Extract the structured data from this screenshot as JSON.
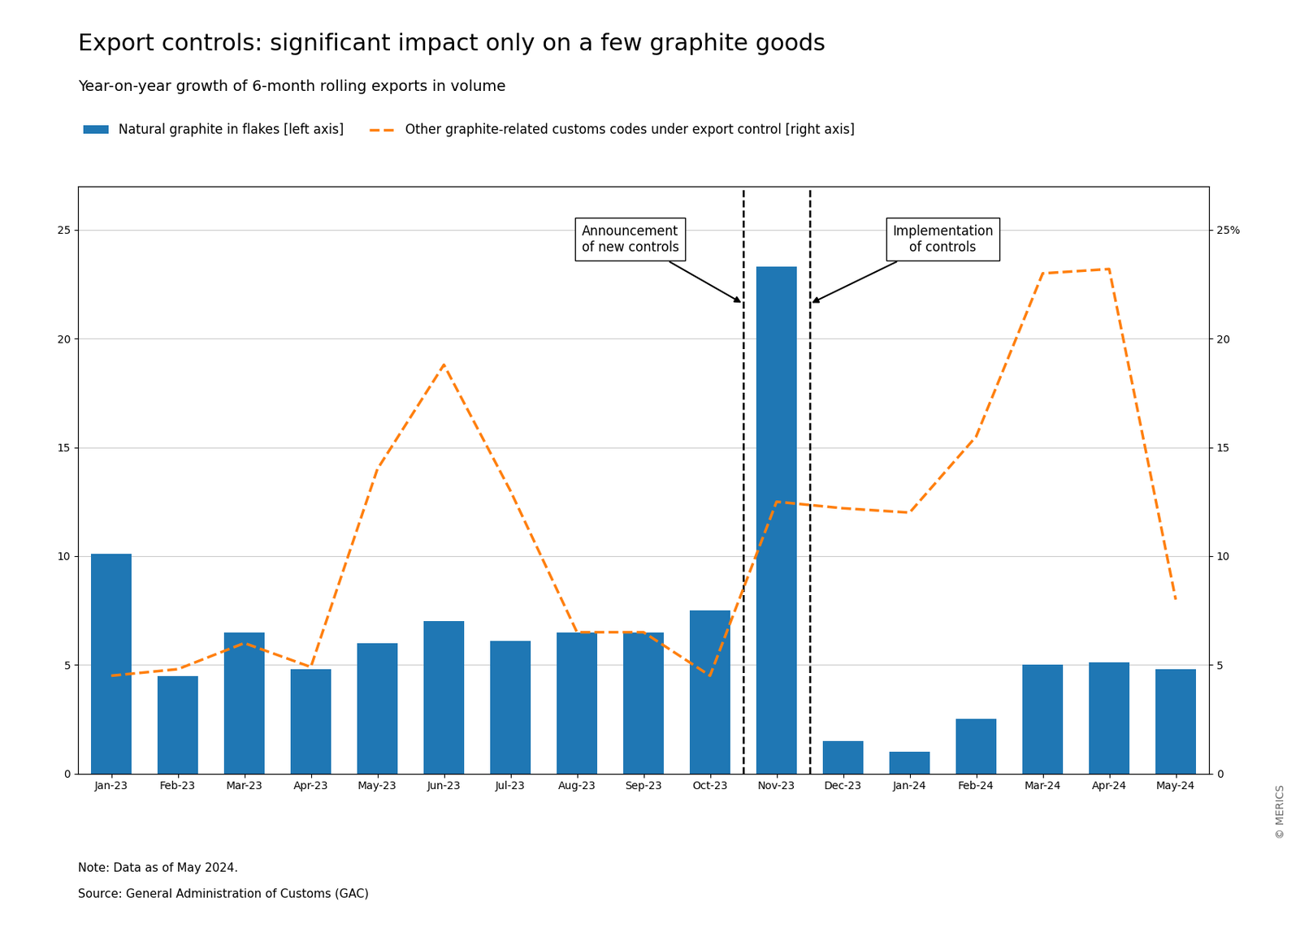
{
  "chart_data": {
    "type": "bar",
    "title": "Export controls: significant impact only on a few graphite goods",
    "subtitle": "Year-on-year growth of 6-month rolling exports in volume",
    "categories": [
      "Jan-23",
      "Feb-23",
      "Mar-23",
      "Apr-23",
      "May-23",
      "Jun-23",
      "Jul-23",
      "Aug-23",
      "Sep-23",
      "Oct-23",
      "Nov-23",
      "Dec-23",
      "Jan-24",
      "Feb-24",
      "Mar-24",
      "Apr-24",
      "May-24"
    ],
    "series": [
      {
        "name": "Natural graphite in flakes [left axis]",
        "type": "bar",
        "color": "#1f77b4",
        "values": [
          10.1,
          4.5,
          6.5,
          4.8,
          6.0,
          7.0,
          6.1,
          6.5,
          6.5,
          7.5,
          23.3,
          1.5,
          1.0,
          2.5,
          5.0,
          5.1,
          4.8
        ]
      },
      {
        "name": "Other graphite-related customs codes under export control [right axis]",
        "type": "line",
        "axis": "y2",
        "color": "#ff7f0e",
        "line_style": "dashed",
        "values": [
          4.5,
          4.8,
          6.0,
          4.9,
          14.0,
          18.8,
          13.0,
          6.5,
          6.5,
          4.5,
          12.5,
          12.2,
          12.0,
          15.5,
          23.0,
          23.2,
          8.0
        ]
      }
    ],
    "ylim": [
      0,
      27
    ],
    "yticks": [
      0,
      5,
      10,
      15,
      20,
      25
    ],
    "y2lim": [
      0,
      27
    ],
    "y2ticks": [
      0,
      5,
      10,
      15,
      20,
      {
        "value": 25,
        "label": "25%"
      }
    ],
    "grid": true,
    "legend": "upper left",
    "annotations": [
      {
        "text": "Announcement\nof new controls",
        "between": [
          "Oct-23",
          "Nov-23"
        ]
      },
      {
        "text": "Implementation\nof controls",
        "between": [
          "Nov-23",
          "Dec-23"
        ]
      }
    ],
    "notes": [
      "Note: Data as of May 2024.",
      "Source: General Administration of Customs (GAC)"
    ],
    "credit": "© MERICS"
  }
}
